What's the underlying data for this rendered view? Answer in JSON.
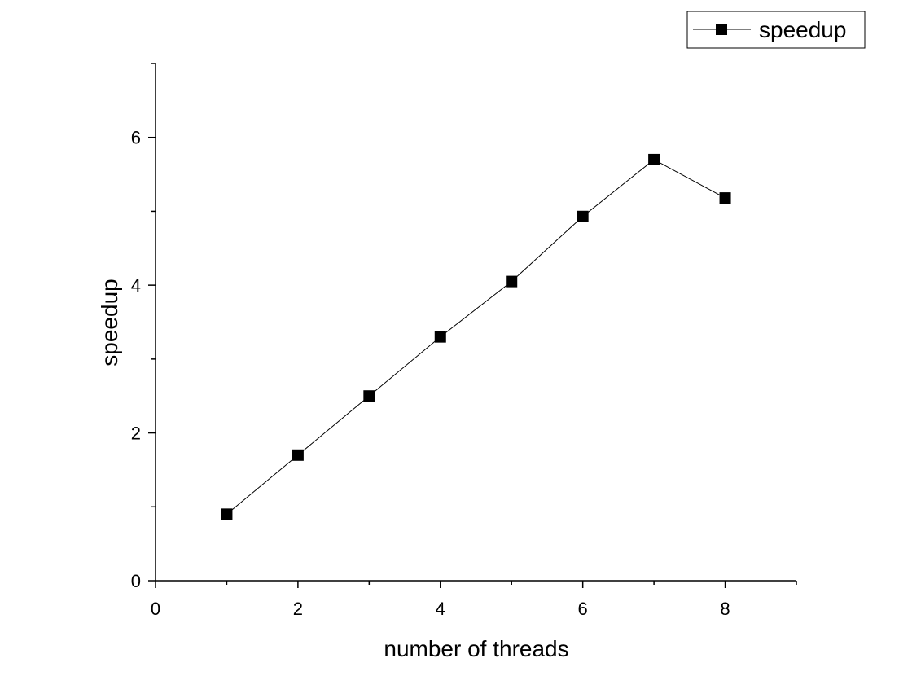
{
  "chart_data": {
    "type": "line",
    "title": "",
    "xlabel": "number of threads",
    "ylabel": "speedup",
    "xlim": [
      0,
      9
    ],
    "ylim": [
      0,
      7
    ],
    "x_ticks": [
      0,
      2,
      4,
      6,
      8
    ],
    "y_ticks": [
      0,
      2,
      4,
      6
    ],
    "x_minor_ticks": [
      1,
      3,
      5,
      7,
      9
    ],
    "y_minor_ticks": [
      1,
      3,
      5,
      7
    ],
    "grid": false,
    "legend_position": "top-right",
    "series": [
      {
        "name": "speedup",
        "marker": "square",
        "color": "#000000",
        "x": [
          1,
          2,
          3,
          4,
          5,
          6,
          7,
          8
        ],
        "y": [
          0.9,
          1.7,
          2.5,
          3.3,
          4.05,
          4.93,
          5.7,
          5.18
        ]
      }
    ]
  }
}
